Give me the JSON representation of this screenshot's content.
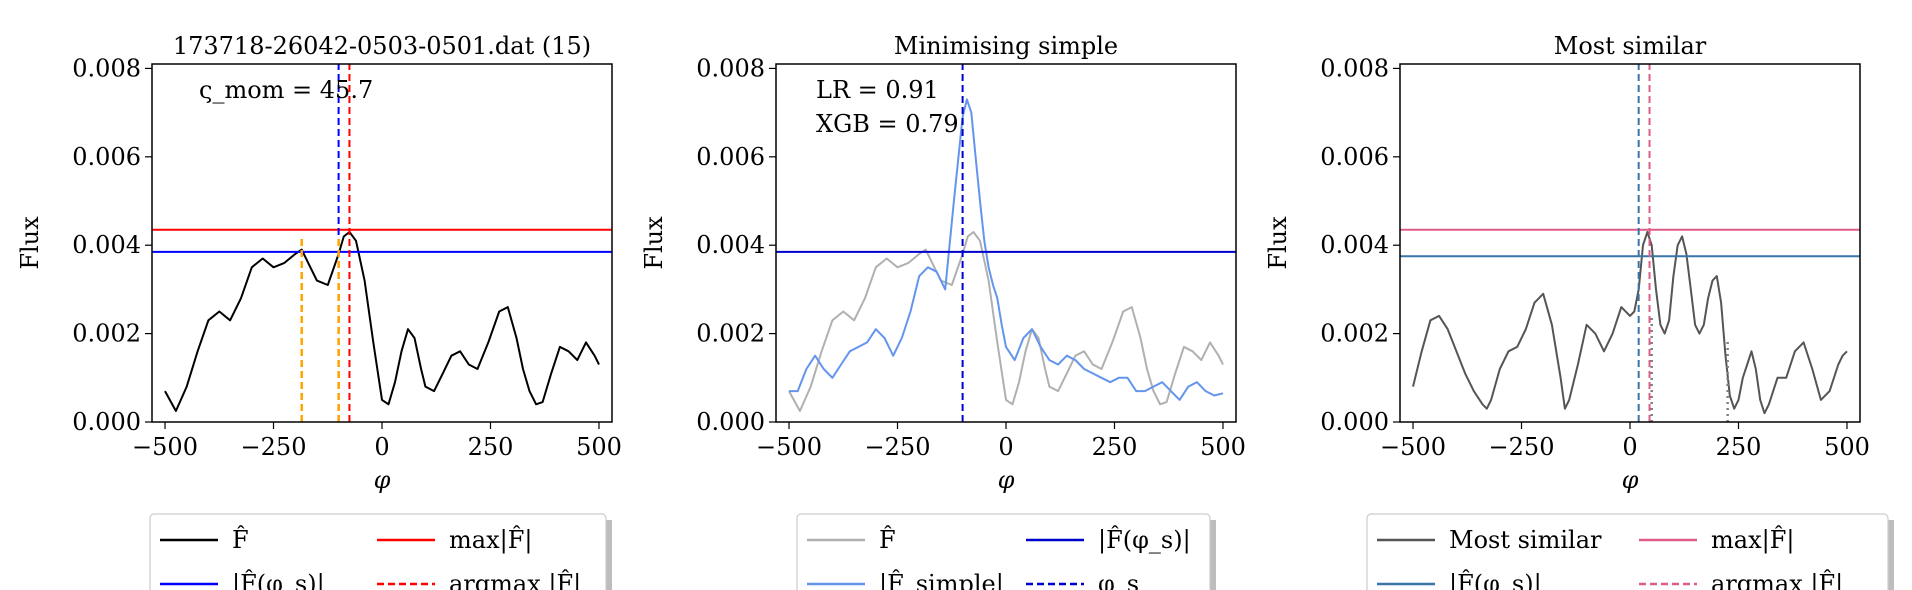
{
  "chart_data": [
    {
      "type": "line",
      "title": "173718-26042-0503-0501.dat (15)",
      "xlabel": "φ",
      "ylabel": "Flux",
      "xlim": [
        -530,
        530
      ],
      "ylim": [
        0,
        0.0081
      ],
      "xticks": [
        -500,
        -250,
        0,
        250,
        500
      ],
      "xtick_labels": [
        "−500",
        "−250",
        "0",
        "250",
        "500"
      ],
      "yticks": [
        0,
        0.002,
        0.004,
        0.006,
        0.008
      ],
      "ytick_labels": [
        "0.000",
        "0.002",
        "0.004",
        "0.006",
        "0.008"
      ],
      "annotations": [
        {
          "text": "ς_mom = 45.7",
          "position": "upper-left"
        }
      ],
      "series": [
        {
          "name": "F̂",
          "color": "#000000",
          "style": "solid",
          "x": [
            -500,
            -475,
            -450,
            -425,
            -400,
            -375,
            -350,
            -325,
            -300,
            -275,
            -250,
            -225,
            -200,
            -185,
            -170,
            -150,
            -125,
            -100,
            -88,
            -75,
            -60,
            -40,
            -20,
            0,
            15,
            30,
            45,
            60,
            75,
            90,
            100,
            120,
            140,
            160,
            180,
            200,
            220,
            245,
            270,
            290,
            310,
            325,
            340,
            355,
            370,
            390,
            410,
            430,
            450,
            470,
            490,
            500
          ],
          "y": [
            0.0007,
            0.00025,
            0.0008,
            0.0016,
            0.0023,
            0.0025,
            0.0023,
            0.0028,
            0.0035,
            0.0037,
            0.0035,
            0.0036,
            0.0038,
            0.0039,
            0.0036,
            0.0032,
            0.0031,
            0.0038,
            0.0042,
            0.0043,
            0.0041,
            0.0032,
            0.0018,
            0.0005,
            0.0004,
            0.0009,
            0.0016,
            0.0021,
            0.0019,
            0.0012,
            0.0008,
            0.0007,
            0.0011,
            0.0015,
            0.0016,
            0.0013,
            0.0012,
            0.0018,
            0.0025,
            0.0026,
            0.0019,
            0.0012,
            0.0007,
            0.0004,
            0.00045,
            0.0011,
            0.0017,
            0.0016,
            0.0014,
            0.0018,
            0.0015,
            0.0013
          ]
        },
        {
          "name": "|F̂(φ_s)|",
          "color": "#0000ff",
          "style": "hline",
          "y": 0.00385
        },
        {
          "name": "max|F̂|",
          "color": "#ff0000",
          "style": "hline",
          "y": 0.00435
        },
        {
          "name": "argmax |F̂|",
          "color": "#ff0000",
          "style": "vline-dashed",
          "x": -75
        },
        {
          "name": "",
          "color": "#0000ff",
          "style": "vline-dashed",
          "x": -100
        },
        {
          "name": "",
          "color": "#ffa500",
          "style": "vline-dashed-partial",
          "x": -185,
          "y_top": 0.0042
        },
        {
          "name": "",
          "color": "#ffa500",
          "style": "vline-dashed-partial",
          "x": -100,
          "y_top": 0.0042
        }
      ],
      "legend": {
        "placement": "below",
        "entries": [
          {
            "label": "F̂",
            "color": "#000000",
            "style": "solid"
          },
          {
            "label": "max|F̂|",
            "color": "#ff0000",
            "style": "solid"
          },
          {
            "label": "|F̂(φ_s)|",
            "color": "#0000ff",
            "style": "solid"
          },
          {
            "label": "argmax |F̂|",
            "color": "#ff0000",
            "style": "dashed"
          }
        ]
      }
    },
    {
      "type": "line",
      "title": "Minimising simple",
      "xlabel": "φ",
      "ylabel": "Flux",
      "xlim": [
        -530,
        530
      ],
      "ylim": [
        0,
        0.0081
      ],
      "xticks": [
        -500,
        -250,
        0,
        250,
        500
      ],
      "xtick_labels": [
        "−500",
        "−250",
        "0",
        "250",
        "500"
      ],
      "yticks": [
        0,
        0.002,
        0.004,
        0.006,
        0.008
      ],
      "ytick_labels": [
        "0.000",
        "0.002",
        "0.004",
        "0.006",
        "0.008"
      ],
      "annotations": [
        {
          "text": "LR = 0.91",
          "position": "upper-left"
        },
        {
          "text": "XGB = 0.79",
          "position": "upper-left"
        }
      ],
      "series": [
        {
          "name": "F̂",
          "color": "#b0b0b0",
          "style": "solid",
          "x": [
            -500,
            -475,
            -450,
            -425,
            -400,
            -375,
            -350,
            -325,
            -300,
            -275,
            -250,
            -225,
            -200,
            -185,
            -170,
            -150,
            -125,
            -100,
            -88,
            -75,
            -60,
            -40,
            -20,
            0,
            15,
            30,
            45,
            60,
            75,
            90,
            100,
            120,
            140,
            160,
            180,
            200,
            220,
            245,
            270,
            290,
            310,
            325,
            340,
            355,
            370,
            390,
            410,
            430,
            450,
            470,
            490,
            500
          ],
          "y": [
            0.0007,
            0.00025,
            0.0008,
            0.0016,
            0.0023,
            0.0025,
            0.0023,
            0.0028,
            0.0035,
            0.0037,
            0.0035,
            0.0036,
            0.0038,
            0.0039,
            0.0036,
            0.0032,
            0.0031,
            0.0038,
            0.0042,
            0.0043,
            0.0041,
            0.0032,
            0.0018,
            0.0005,
            0.0004,
            0.0009,
            0.0016,
            0.0021,
            0.0019,
            0.0012,
            0.0008,
            0.0007,
            0.0011,
            0.0015,
            0.0016,
            0.0013,
            0.0012,
            0.0018,
            0.0025,
            0.0026,
            0.0019,
            0.0012,
            0.0007,
            0.0004,
            0.00045,
            0.0011,
            0.0017,
            0.0016,
            0.0014,
            0.0018,
            0.0015,
            0.0013
          ]
        },
        {
          "name": "|F̂_simple|",
          "color": "#6495ed",
          "style": "solid",
          "x": [
            -500,
            -480,
            -460,
            -440,
            -420,
            -400,
            -380,
            -360,
            -340,
            -320,
            -300,
            -280,
            -260,
            -240,
            -220,
            -200,
            -180,
            -160,
            -140,
            -120,
            -100,
            -90,
            -80,
            -70,
            -60,
            -50,
            -40,
            -30,
            -20,
            -10,
            0,
            20,
            40,
            60,
            80,
            100,
            120,
            140,
            160,
            180,
            200,
            220,
            240,
            260,
            280,
            300,
            320,
            340,
            360,
            380,
            400,
            420,
            440,
            460,
            480,
            500
          ],
          "y": [
            0.0007,
            0.0007,
            0.0012,
            0.0015,
            0.0012,
            0.001,
            0.0013,
            0.0016,
            0.0017,
            0.0018,
            0.0021,
            0.0019,
            0.0015,
            0.0019,
            0.0025,
            0.0033,
            0.0035,
            0.0034,
            0.003,
            0.005,
            0.0069,
            0.0073,
            0.007,
            0.006,
            0.005,
            0.0041,
            0.0035,
            0.0031,
            0.0028,
            0.0022,
            0.0017,
            0.0014,
            0.0019,
            0.0021,
            0.0017,
            0.0014,
            0.0013,
            0.0015,
            0.0014,
            0.0012,
            0.0011,
            0.001,
            0.0009,
            0.001,
            0.001,
            0.0007,
            0.0007,
            0.0008,
            0.0009,
            0.0007,
            0.0005,
            0.0008,
            0.0009,
            0.0007,
            0.0006,
            0.00065
          ]
        },
        {
          "name": "|F̂(φ_s)|",
          "color": "#0000cd",
          "style": "hline",
          "y": 0.00385
        },
        {
          "name": "φ_s",
          "color": "#0000cd",
          "style": "vline-dashed",
          "x": -100
        }
      ],
      "legend": {
        "placement": "below",
        "entries": [
          {
            "label": "F̂",
            "color": "#b0b0b0",
            "style": "solid"
          },
          {
            "label": "|F̂(φ_s)|",
            "color": "#0000cd",
            "style": "solid"
          },
          {
            "label": "|F̂_simple|",
            "color": "#6495ed",
            "style": "solid"
          },
          {
            "label": "φ_s",
            "color": "#0000cd",
            "style": "dashed"
          }
        ]
      }
    },
    {
      "type": "line",
      "title": "Most similar",
      "xlabel": "φ",
      "ylabel": "Flux",
      "xlim": [
        -530,
        530
      ],
      "ylim": [
        0,
        0.0081
      ],
      "xticks": [
        -500,
        -250,
        0,
        250,
        500
      ],
      "xtick_labels": [
        "−500",
        "−250",
        "0",
        "250",
        "500"
      ],
      "yticks": [
        0,
        0.002,
        0.004,
        0.006,
        0.008
      ],
      "ytick_labels": [
        "0.000",
        "0.002",
        "0.004",
        "0.006",
        "0.008"
      ],
      "annotations": [],
      "series": [
        {
          "name": "Most similar",
          "color": "#555555",
          "style": "solid",
          "x": [
            -500,
            -480,
            -460,
            -440,
            -420,
            -400,
            -380,
            -360,
            -340,
            -330,
            -320,
            -300,
            -280,
            -260,
            -240,
            -220,
            -200,
            -180,
            -160,
            -150,
            -140,
            -120,
            -100,
            -80,
            -60,
            -40,
            -20,
            0,
            10,
            20,
            30,
            40,
            50,
            60,
            70,
            80,
            90,
            100,
            110,
            120,
            130,
            140,
            150,
            160,
            170,
            180,
            190,
            200,
            210,
            220,
            230,
            240,
            250,
            260,
            270,
            280,
            290,
            300,
            310,
            320,
            340,
            360,
            380,
            400,
            420,
            440,
            460,
            480,
            490,
            500
          ],
          "y": [
            0.0008,
            0.0016,
            0.0023,
            0.0024,
            0.0021,
            0.0016,
            0.0011,
            0.0007,
            0.0004,
            0.0003,
            0.0005,
            0.0012,
            0.0016,
            0.0017,
            0.0021,
            0.0027,
            0.0029,
            0.0022,
            0.001,
            0.0003,
            0.0005,
            0.0013,
            0.0022,
            0.002,
            0.0016,
            0.002,
            0.0026,
            0.0024,
            0.0025,
            0.003,
            0.004,
            0.0043,
            0.004,
            0.003,
            0.0022,
            0.002,
            0.0023,
            0.0033,
            0.004,
            0.0042,
            0.0038,
            0.003,
            0.0022,
            0.002,
            0.0022,
            0.0028,
            0.0032,
            0.0033,
            0.0027,
            0.0015,
            0.0006,
            0.0003,
            0.0005,
            0.001,
            0.0013,
            0.0016,
            0.0012,
            0.0005,
            0.0002,
            0.0004,
            0.001,
            0.001,
            0.0016,
            0.0018,
            0.0012,
            0.0005,
            0.0007,
            0.0013,
            0.0015,
            0.0016
          ]
        },
        {
          "name": "|F̂(φ_s)|",
          "color": "#3a75a8",
          "style": "hline",
          "y": 0.00375
        },
        {
          "name": "max|F̂|",
          "color": "#dd5c88",
          "style": "hline",
          "y": 0.00435
        },
        {
          "name": "",
          "color": "#3a75a8",
          "style": "vline-dashed",
          "x": 20
        },
        {
          "name": "argmax |F̂|",
          "color": "#dd5c88",
          "style": "vline-dashed",
          "x": 45
        },
        {
          "name": "",
          "color": "#808080",
          "style": "vline-dotted-partial",
          "x": 50,
          "y_top": 0.0024
        },
        {
          "name": "",
          "color": "#808080",
          "style": "vline-dotted-partial",
          "x": 225,
          "y_top": 0.0019
        }
      ],
      "legend": {
        "placement": "below",
        "entries": [
          {
            "label": "Most similar",
            "color": "#555555",
            "style": "solid"
          },
          {
            "label": "max|F̂|",
            "color": "#dd5c88",
            "style": "solid"
          },
          {
            "label": "|F̂(φ_s)|",
            "color": "#3a75a8",
            "style": "solid"
          },
          {
            "label": "argmax |F̂|",
            "color": "#dd5c88",
            "style": "dashed"
          }
        ]
      }
    }
  ]
}
